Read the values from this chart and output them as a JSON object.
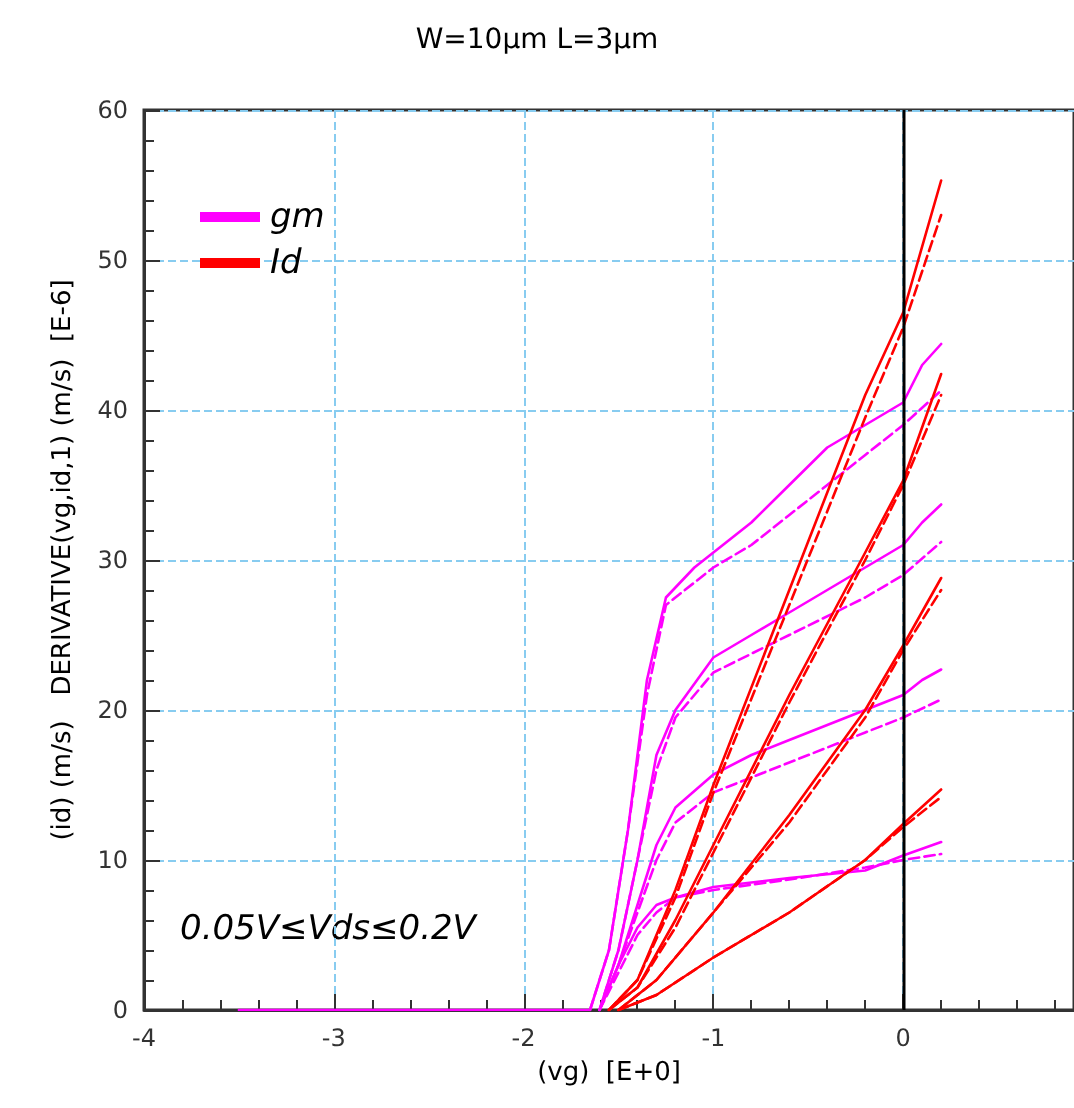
{
  "chart_data": {
    "type": "line",
    "title": "W=10μm L=3μm",
    "xlabel": "(vg)  [E+0]",
    "ylabel": "(id) (m/s)   DERIVATIVE(vg,id,1) (m/s)  [E-6]",
    "annotations": [
      "0.05V≤Vds≤0.2V"
    ],
    "xlim": [
      -4,
      0.9
    ],
    "xticks": [
      -4,
      -3,
      -2,
      -1,
      0
    ],
    "ylim": [
      0,
      60
    ],
    "yticks": [
      0,
      10,
      20,
      30,
      40,
      50,
      60
    ],
    "grid": true,
    "legend": "top left",
    "marker": "none",
    "ref_lines": [
      {
        "axis": "x",
        "value": 0,
        "color": "#000000",
        "line_style": "solid"
      }
    ],
    "series": [
      {
        "name": "gm",
        "color": "#ff00ff",
        "line_style": "solid",
        "x": [
          -3.5,
          -1.65,
          -1.55,
          -1.45,
          -1.35,
          -1.25,
          -1.1,
          -1,
          -0.8,
          -0.6,
          -0.4,
          -0.2,
          0,
          0.1,
          0.2
        ],
        "values": [
          0,
          0,
          4,
          12,
          22,
          27.5,
          29.5,
          30.5,
          32.5,
          35,
          37.5,
          39,
          40.5,
          43,
          44.4
        ]
      },
      {
        "color": "#ff00ff",
        "line_style": "dashed",
        "x": [
          -1.65,
          -1.55,
          -1.45,
          -1.35,
          -1.25,
          -1.1,
          -1,
          -0.8,
          -0.6,
          -0.4,
          -0.2,
          0,
          0.2
        ],
        "values": [
          0,
          4,
          12,
          21,
          27,
          28.5,
          29.5,
          31,
          33,
          35,
          37,
          39,
          41.3
        ]
      },
      {
        "color": "#ff00ff",
        "line_style": "solid",
        "x": [
          -1.6,
          -1.5,
          -1.4,
          -1.3,
          -1.2,
          -1,
          -0.8,
          -0.6,
          -0.4,
          -0.2,
          0,
          0.1,
          0.2
        ],
        "values": [
          0,
          4,
          10,
          17,
          20,
          23.5,
          25,
          26.5,
          28,
          29.5,
          31,
          32.5,
          33.7
        ]
      },
      {
        "color": "#ff00ff",
        "line_style": "dashed",
        "x": [
          -1.6,
          -1.5,
          -1.4,
          -1.3,
          -1.2,
          -1,
          -0.6,
          -0.2,
          0,
          0.2
        ],
        "values": [
          0,
          4,
          10,
          16,
          19.5,
          22.5,
          25,
          27.5,
          29,
          31.2
        ]
      },
      {
        "color": "#ff00ff",
        "line_style": "solid",
        "x": [
          -1.6,
          -1.5,
          -1.4,
          -1.3,
          -1.2,
          -1,
          -0.8,
          -0.6,
          -0.4,
          -0.2,
          0,
          0.1,
          0.2
        ],
        "values": [
          0,
          3,
          7,
          11,
          13.5,
          15.7,
          17,
          18,
          19,
          20,
          21,
          22,
          22.7
        ]
      },
      {
        "color": "#ff00ff",
        "line_style": "dashed",
        "x": [
          -1.6,
          -1.5,
          -1.4,
          -1.3,
          -1.2,
          -1,
          -0.6,
          -0.2,
          0,
          0.2
        ],
        "values": [
          0,
          3,
          6.5,
          10,
          12.5,
          14.5,
          16.5,
          18.5,
          19.5,
          20.7
        ]
      },
      {
        "color": "#ff00ff",
        "line_style": "solid",
        "x": [
          -1.6,
          -1.5,
          -1.4,
          -1.3,
          -1.2,
          -1,
          -0.6,
          -0.2,
          0,
          0.2
        ],
        "values": [
          0,
          3,
          5.5,
          7,
          7.5,
          8.2,
          8.8,
          9.3,
          10.3,
          11.2
        ]
      },
      {
        "color": "#ff00ff",
        "line_style": "dashed",
        "x": [
          -1.6,
          -1.5,
          -1.4,
          -1.3,
          -1.2,
          -1,
          -0.6,
          -0.2,
          0,
          0.2
        ],
        "values": [
          0,
          2.5,
          5,
          6.5,
          7.5,
          8,
          8.7,
          9.5,
          10,
          10.4
        ]
      },
      {
        "name": "Id",
        "color": "#ff0000",
        "line_style": "solid",
        "x": [
          -1.55,
          -1.4,
          -1.2,
          -1,
          -0.6,
          -0.2,
          0,
          0.2
        ],
        "values": [
          0,
          2,
          8,
          15,
          28,
          41,
          46.5,
          55.3
        ]
      },
      {
        "color": "#ff0000",
        "line_style": "dashed",
        "x": [
          -1.55,
          -1.4,
          -1.2,
          -1,
          -0.6,
          -0.2,
          0,
          0.2
        ],
        "values": [
          0,
          2,
          7.5,
          14.5,
          27,
          39.5,
          45.5,
          53
        ]
      },
      {
        "color": "#ff0000",
        "line_style": "solid",
        "x": [
          -1.55,
          -1.4,
          -1.2,
          -1,
          -0.6,
          -0.2,
          0,
          0.2
        ],
        "values": [
          0,
          1.5,
          6,
          11,
          21,
          30.5,
          35.3,
          42.4
        ]
      },
      {
        "color": "#ff0000",
        "line_style": "dashed",
        "x": [
          -1.55,
          -1.4,
          -1.2,
          -1,
          -0.6,
          -0.2,
          0,
          0.2
        ],
        "values": [
          0,
          1.5,
          5.5,
          10.5,
          20.5,
          30,
          35,
          41
        ]
      },
      {
        "color": "#ff0000",
        "line_style": "solid",
        "x": [
          -1.5,
          -1.3,
          -1,
          -0.6,
          -0.2,
          0,
          0.2
        ],
        "values": [
          0,
          2,
          6.5,
          13,
          20,
          24.3,
          28.8
        ]
      },
      {
        "color": "#ff0000",
        "line_style": "dashed",
        "x": [
          -1.5,
          -1.3,
          -1,
          -0.6,
          -0.2,
          0,
          0.2
        ],
        "values": [
          0,
          2,
          6.5,
          12.5,
          19.5,
          24,
          28
        ]
      },
      {
        "color": "#ff0000",
        "line_style": "solid",
        "x": [
          -1.5,
          -1.3,
          -1,
          -0.6,
          -0.2,
          0,
          0.2
        ],
        "values": [
          0,
          1,
          3.5,
          6.5,
          10,
          12.4,
          14.7
        ]
      },
      {
        "color": "#ff0000",
        "line_style": "dashed",
        "x": [
          -1.5,
          -1.3,
          -1,
          -0.6,
          -0.2,
          0,
          0.2
        ],
        "values": [
          0,
          1,
          3.5,
          6.5,
          10,
          12.2,
          14.2
        ]
      }
    ]
  }
}
